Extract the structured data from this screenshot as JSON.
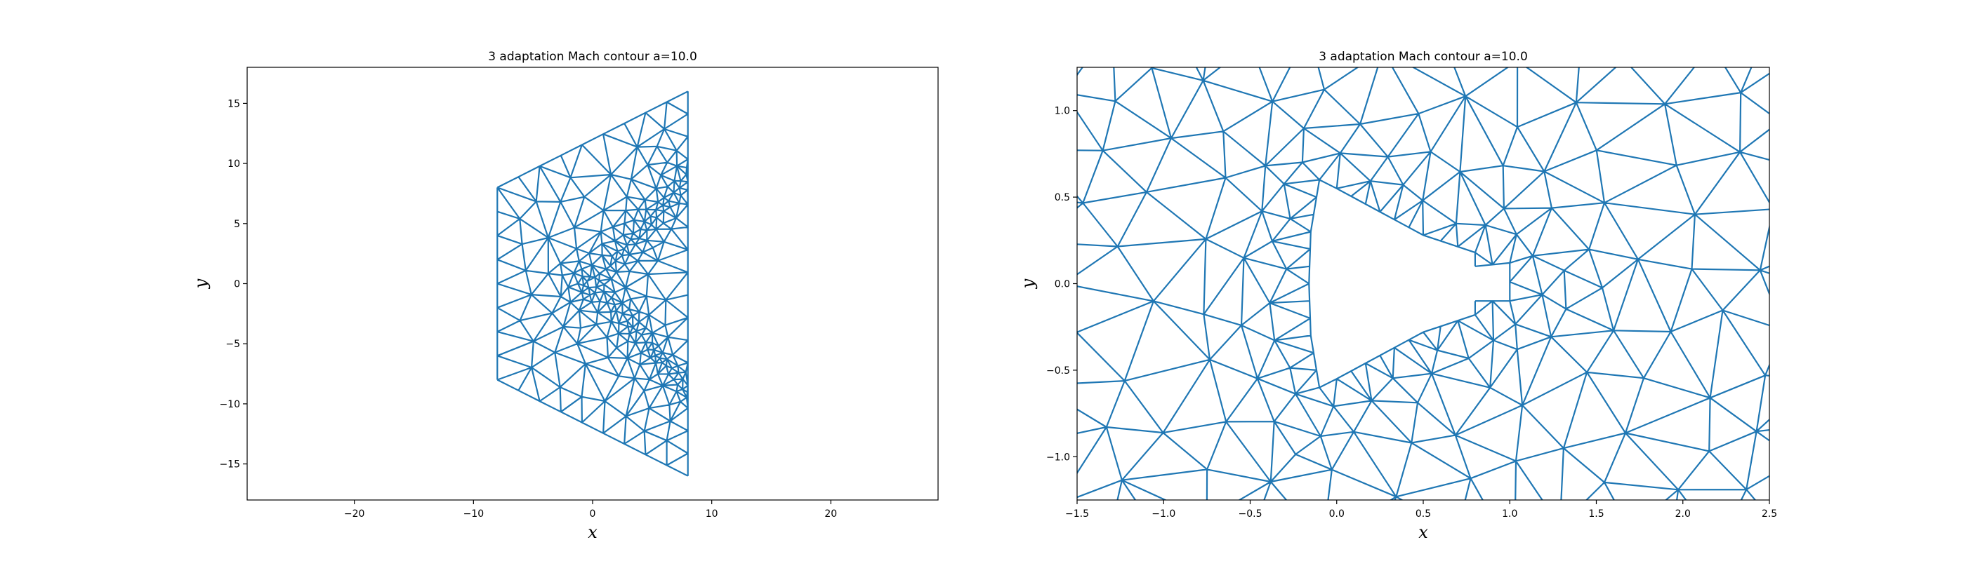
{
  "colors": {
    "mesh": "#1f77b4",
    "axes": "#000000",
    "background": "#ffffff"
  },
  "chart_data": [
    {
      "type": "mesh",
      "title": "3 adaptation Mach contour a=10.0",
      "xlabel": "x",
      "ylabel": "y",
      "xlim": [
        -29,
        29
      ],
      "ylim": [
        -18,
        18
      ],
      "xticks": [
        -20,
        -10,
        0,
        10,
        20
      ],
      "xtick_labels": [
        "−20",
        "−10",
        "0",
        "10",
        "20"
      ],
      "yticks": [
        -15,
        -10,
        -5,
        0,
        5,
        10,
        15
      ],
      "ytick_labels": [
        "−15",
        "−10",
        "−5",
        "0",
        "5",
        "10",
        "15"
      ],
      "domain_outline": [
        [
          -8,
          8
        ],
        [
          8,
          16
        ],
        [
          8,
          -16
        ],
        [
          -8,
          -8
        ]
      ],
      "body_position": [
        0,
        0
      ],
      "grid": false
    },
    {
      "type": "mesh",
      "title": "3 adaptation Mach contour a=10.0",
      "xlabel": "x",
      "ylabel": "y",
      "xlim": [
        -1.5,
        2.5
      ],
      "ylim": [
        -1.25,
        1.25
      ],
      "xticks": [
        -1.5,
        -1.0,
        -0.5,
        0.0,
        0.5,
        1.0,
        1.5,
        2.0,
        2.5
      ],
      "xtick_labels": [
        "−1.5",
        "−1.0",
        "−0.5",
        "0.0",
        "0.5",
        "1.0",
        "1.5",
        "2.0",
        "2.5"
      ],
      "yticks": [
        -1.0,
        -0.5,
        0.0,
        0.5,
        1.0
      ],
      "ytick_labels": [
        "−1.0",
        "−0.5",
        "0.0",
        "0.5",
        "1.0"
      ],
      "body_outline": [
        [
          -0.1,
          0.6
        ],
        [
          0.0,
          0.55
        ],
        [
          0.5,
          0.28
        ],
        [
          0.8,
          0.18
        ],
        [
          0.8,
          0.1
        ],
        [
          1.0,
          0.12
        ],
        [
          1.0,
          -0.1
        ],
        [
          0.8,
          -0.1
        ],
        [
          0.8,
          -0.18
        ],
        [
          0.5,
          -0.28
        ],
        [
          0.0,
          -0.55
        ],
        [
          -0.1,
          -0.6
        ],
        [
          -0.15,
          -0.3
        ],
        [
          -0.16,
          0.0
        ],
        [
          -0.15,
          0.3
        ]
      ],
      "grid": false
    }
  ]
}
